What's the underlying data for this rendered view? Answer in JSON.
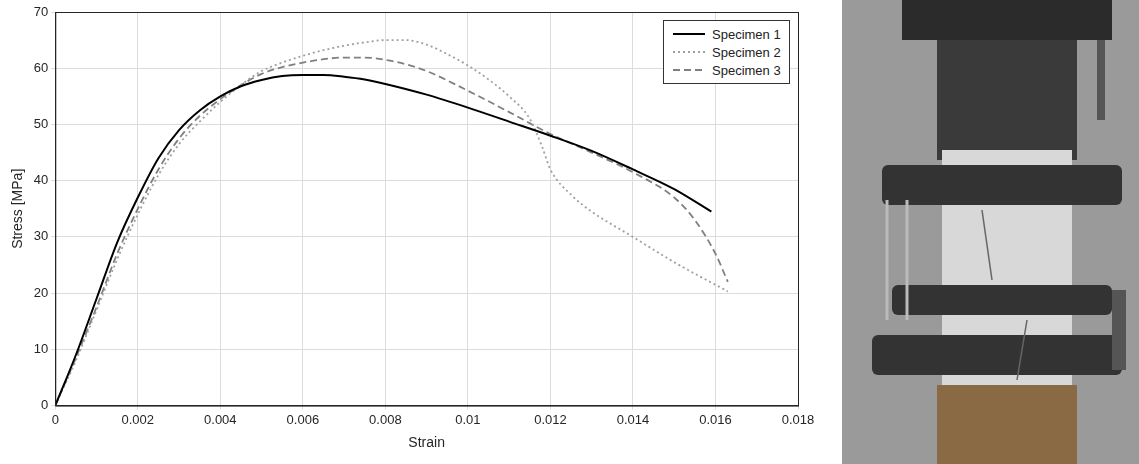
{
  "chart_data": {
    "type": "line",
    "x_label": "Strain",
    "y_label": "Stress [MPa]",
    "xlim": [
      0,
      0.018
    ],
    "xticks": [
      0,
      0.002,
      0.004,
      0.006,
      0.008,
      0.01,
      0.012,
      0.014,
      0.016,
      0.018
    ],
    "ylim": [
      0,
      70
    ],
    "yticks": [
      0,
      10,
      20,
      30,
      40,
      50,
      60,
      70
    ],
    "grid": true,
    "legend": "upper right",
    "series": [
      {
        "name": "Specimen 1",
        "color": "#000000",
        "line_style": "solid",
        "x": [
          0,
          0.0005,
          0.001,
          0.0015,
          0.002,
          0.0025,
          0.003,
          0.0035,
          0.004,
          0.0045,
          0.005,
          0.0055,
          0.006,
          0.0065,
          0.007,
          0.0075,
          0.008,
          0.009,
          0.01,
          0.011,
          0.012,
          0.013,
          0.014,
          0.015,
          0.0159
        ],
        "values": [
          0,
          9,
          19,
          29,
          37,
          44,
          49,
          52.5,
          55,
          56.8,
          57.9,
          58.6,
          58.8,
          58.8,
          58.5,
          58,
          57.2,
          55.3,
          53,
          50.5,
          48,
          45.3,
          42,
          38.5,
          34.5
        ]
      },
      {
        "name": "Specimen 2",
        "color": "#a0a0a0",
        "line_style": "dotted",
        "x": [
          0,
          0.0005,
          0.001,
          0.0015,
          0.002,
          0.0025,
          0.003,
          0.0035,
          0.004,
          0.0045,
          0.005,
          0.0055,
          0.006,
          0.0065,
          0.007,
          0.0075,
          0.008,
          0.0085,
          0.009,
          0.0095,
          0.01,
          0.0105,
          0.011,
          0.0115,
          0.0118,
          0.012,
          0.0125,
          0.013,
          0.014,
          0.015,
          0.0163
        ],
        "values": [
          0,
          8,
          17,
          26,
          34,
          41,
          46.5,
          50.5,
          54,
          57,
          59.5,
          61,
          62.2,
          63.2,
          64,
          64.6,
          65,
          65,
          64.2,
          62.5,
          60.5,
          58,
          55,
          51,
          46,
          42,
          37.5,
          34.5,
          30,
          25.5,
          20.3
        ]
      },
      {
        "name": "Specimen 3",
        "color": "#808080",
        "line_style": "dashed",
        "x": [
          0,
          0.0005,
          0.001,
          0.0015,
          0.002,
          0.0025,
          0.003,
          0.0035,
          0.004,
          0.0045,
          0.005,
          0.0055,
          0.006,
          0.0065,
          0.007,
          0.0075,
          0.008,
          0.0085,
          0.009,
          0.01,
          0.011,
          0.012,
          0.013,
          0.014,
          0.015,
          0.0155,
          0.016,
          0.0163
        ],
        "values": [
          0,
          8.5,
          17.5,
          27,
          35,
          42,
          47.5,
          51.5,
          54.5,
          57,
          59,
          60.2,
          61,
          61.6,
          61.9,
          61.9,
          61.5,
          60.7,
          59.5,
          56,
          52.2,
          48.3,
          45,
          41.5,
          37,
          33,
          27,
          22
        ]
      }
    ]
  }
}
